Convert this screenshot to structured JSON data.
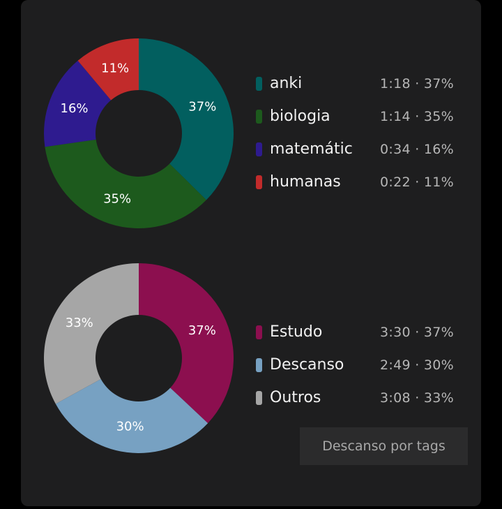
{
  "chart_data": [
    {
      "type": "pie",
      "slices": [
        {
          "label": "anki",
          "percent": 37,
          "time": "1:18",
          "value_text": "1:18 · 37%",
          "pct_label": "37%",
          "color": "#025f5f"
        },
        {
          "label": "biologia",
          "percent": 35,
          "time": "1:14",
          "value_text": "1:14 · 35%",
          "pct_label": "35%",
          "color": "#1d5a1d"
        },
        {
          "label": "matemátic",
          "percent": 16,
          "time": "0:34",
          "value_text": "0:34 · 16%",
          "pct_label": "16%",
          "color": "#2e1b8f"
        },
        {
          "label": "humanas",
          "percent": 11,
          "time": "0:22",
          "value_text": "0:22 · 11%",
          "pct_label": "11%",
          "color": "#c22b2b"
        }
      ]
    },
    {
      "type": "pie",
      "slices": [
        {
          "label": "Estudo",
          "percent": 37,
          "time": "3:30",
          "value_text": "3:30 · 37%",
          "pct_label": "37%",
          "color": "#8c0f4f"
        },
        {
          "label": "Descanso",
          "percent": 30,
          "time": "2:49",
          "value_text": "2:49 · 30%",
          "pct_label": "30%",
          "color": "#77a1c2"
        },
        {
          "label": "Outros",
          "percent": 33,
          "time": "3:08",
          "value_text": "3:08 · 33%",
          "pct_label": "33%",
          "color": "#a6a6a6"
        }
      ]
    }
  ],
  "button": {
    "label": "Descanso por tags"
  }
}
